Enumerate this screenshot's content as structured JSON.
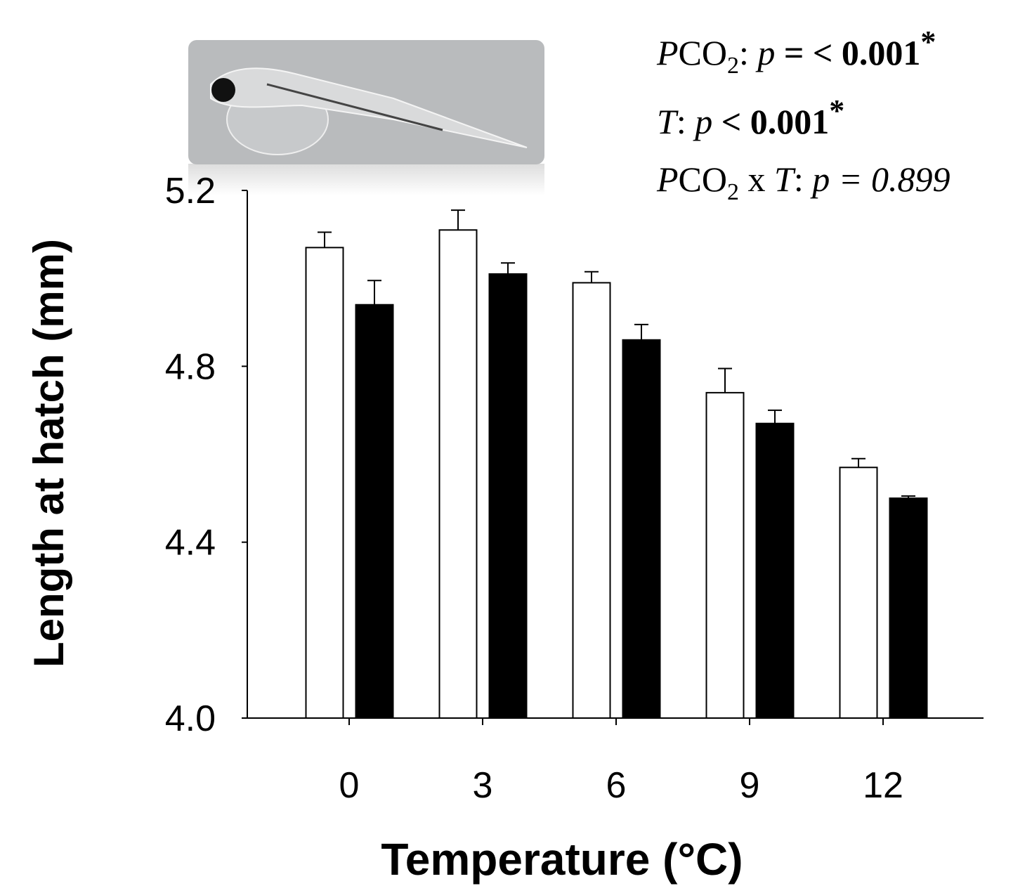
{
  "chart_data": {
    "type": "bar",
    "x_label": "Temperature (°C)",
    "y_label": "Length at hatch (mm)",
    "categories": [
      "0",
      "3",
      "6",
      "9",
      "12"
    ],
    "series": [
      {
        "color": "#ffffff",
        "values": [
          5.07,
          5.11,
          4.99,
          4.74,
          4.57
        ],
        "errors": [
          0.035,
          0.045,
          0.025,
          0.055,
          0.02
        ]
      },
      {
        "color": "#000000",
        "values": [
          4.94,
          5.01,
          4.86,
          4.67,
          4.5
        ],
        "errors": [
          0.055,
          0.025,
          0.035,
          0.03,
          0.005
        ]
      }
    ],
    "ylim": [
      4.0,
      5.2
    ],
    "yticks": [
      {
        "value": 4.0,
        "label": "4.0"
      },
      4.4,
      4.8,
      {
        "value": 5.2,
        "label": "5.2"
      }
    ],
    "annotations": [
      [
        "P",
        "CO",
        "2",
        ": ",
        "p",
        " = < 0.001",
        "*"
      ],
      [
        "T",
        ": ",
        "p",
        " < 0.001",
        "*"
      ],
      [
        "P",
        "CO",
        "2",
        " x ",
        "T",
        ": ",
        "p = 0.899"
      ]
    ]
  }
}
